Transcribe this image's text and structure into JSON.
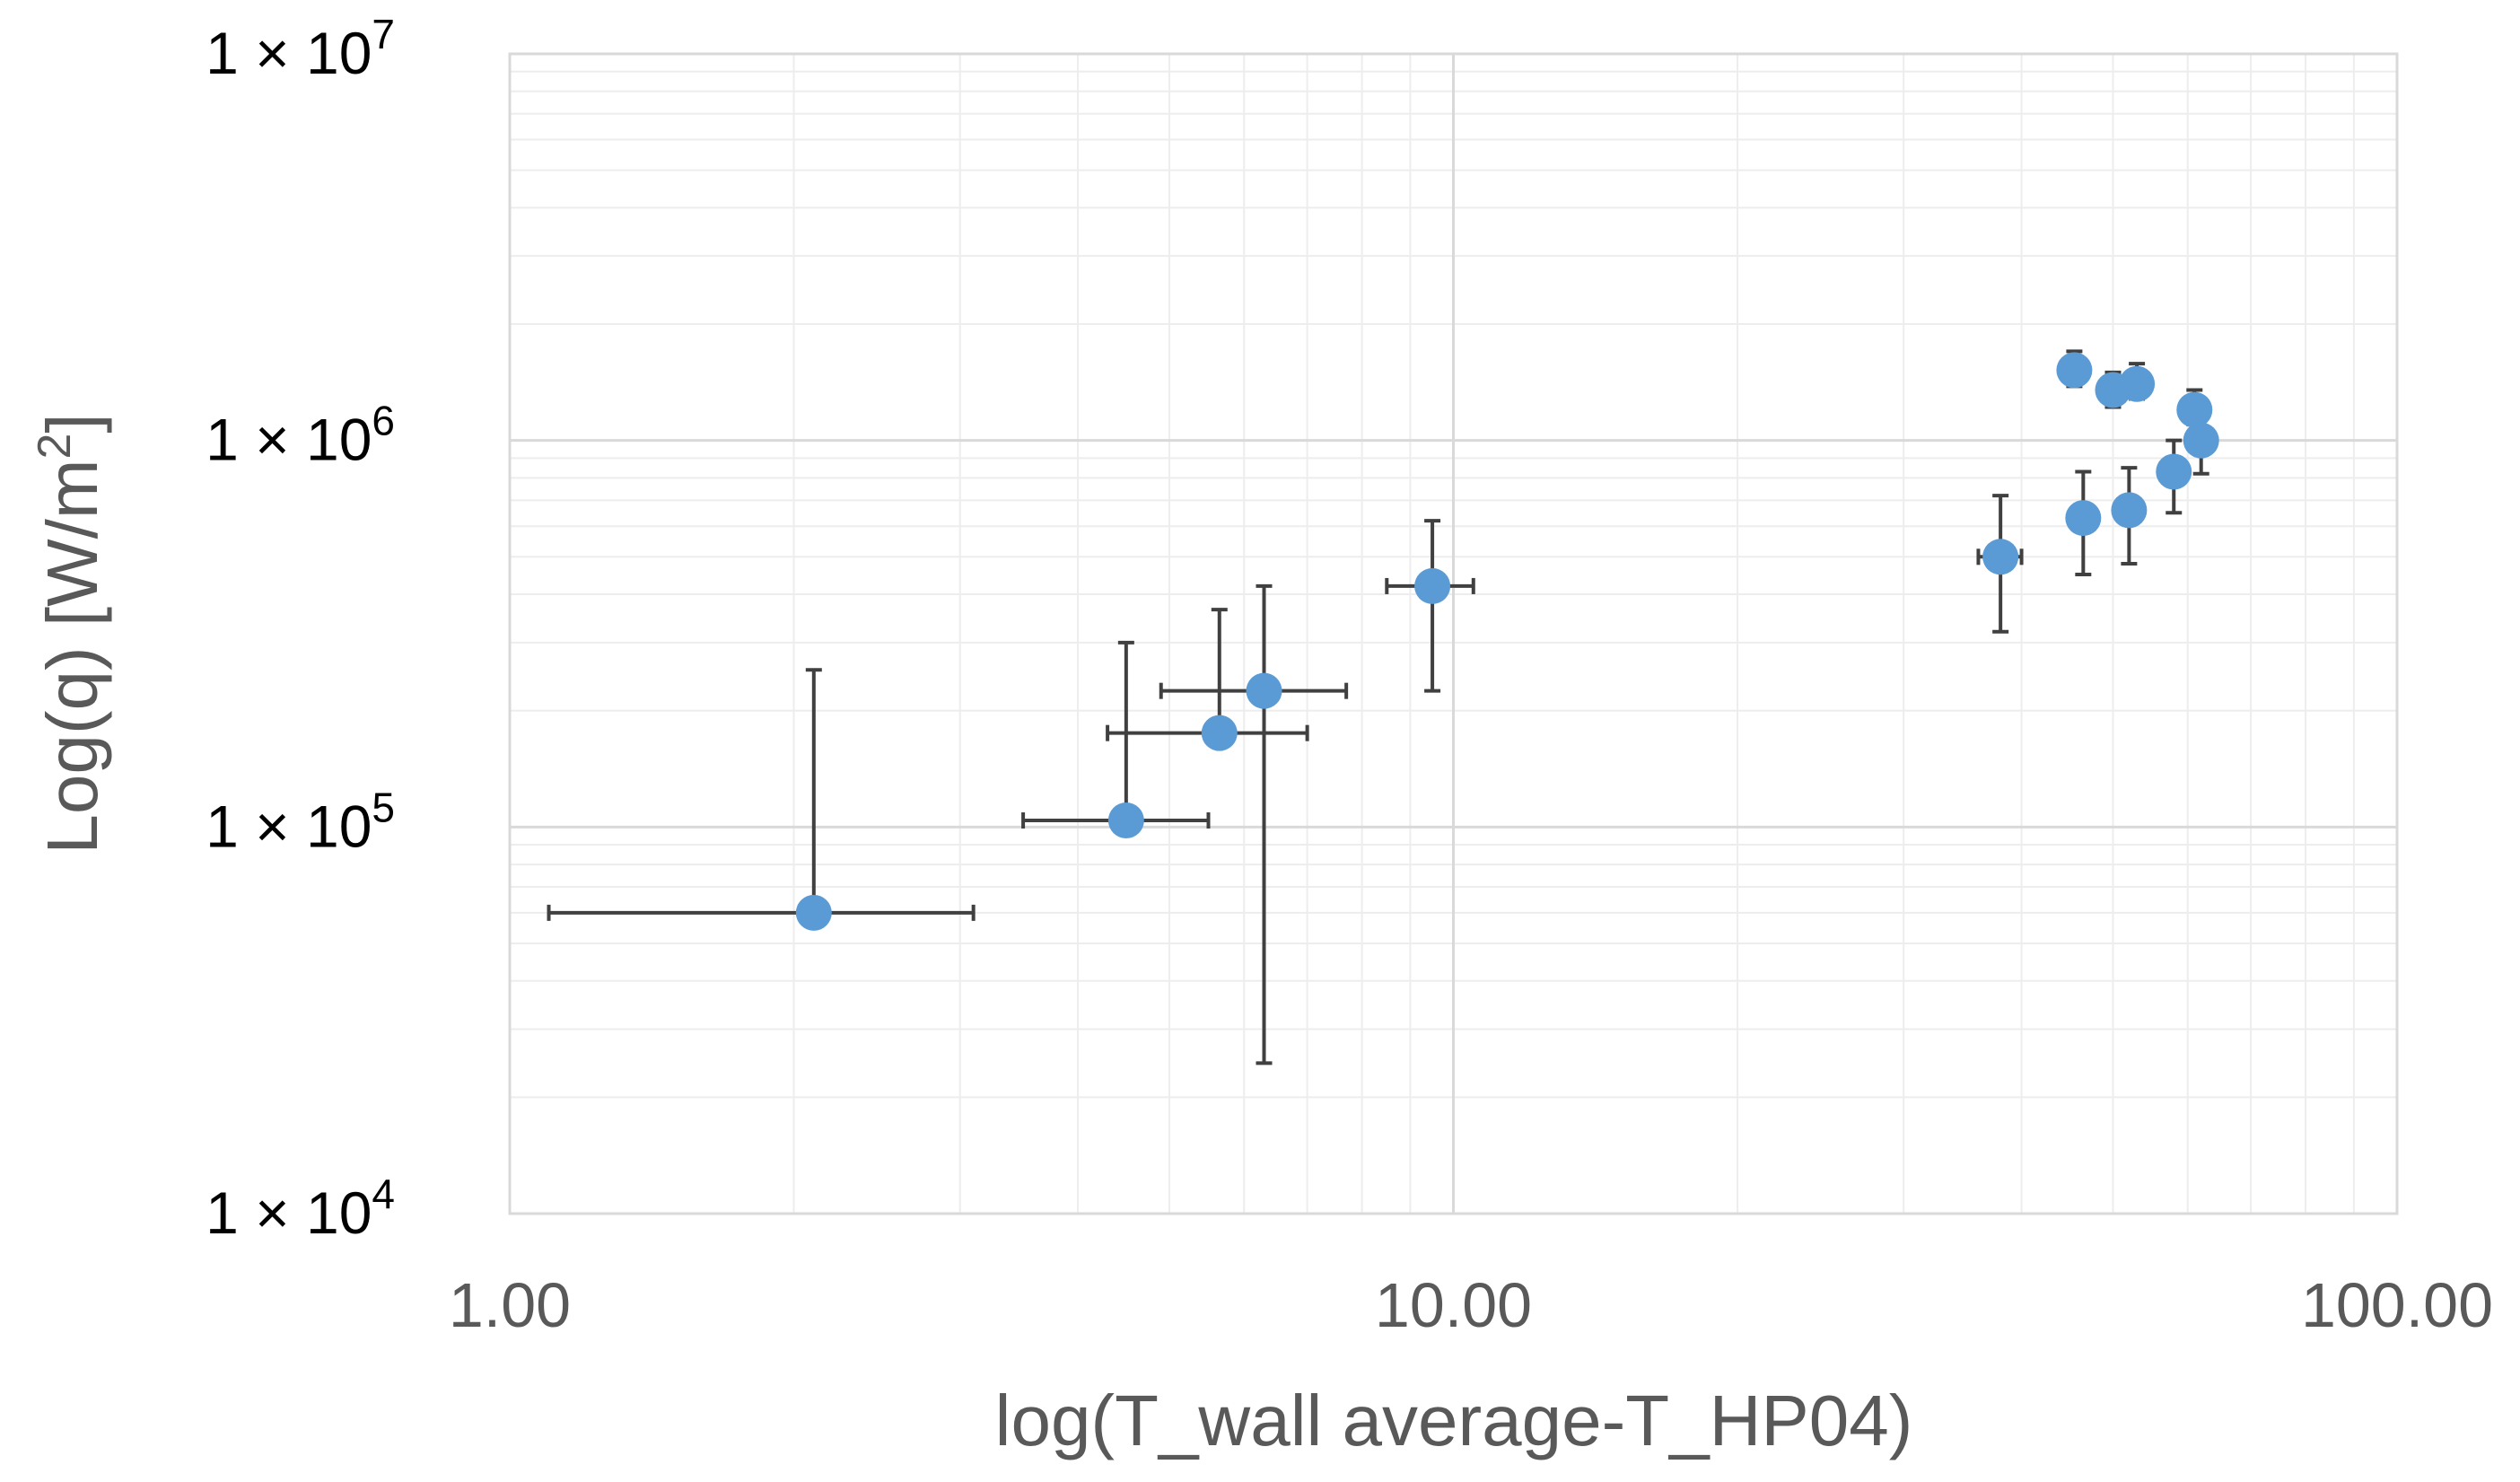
{
  "chart_data": {
    "type": "scatter",
    "title": "",
    "xlabel": "log(T_wall average-T_HP04)",
    "ylabel": {
      "prefix": "Log(q) [W/m",
      "sup": "2",
      "suffix": "]"
    },
    "xscale": "log",
    "yscale": "log",
    "xlim": [
      1,
      100
    ],
    "ylim": [
      10000,
      10000000
    ],
    "grid": true,
    "legend": "none",
    "x_ticks": [
      {
        "value": 1,
        "label": "1.00"
      },
      {
        "value": 10,
        "label": "10.00"
      },
      {
        "value": 100,
        "label": "100.00"
      }
    ],
    "y_ticks": [
      {
        "value": 10000,
        "mantissa": "1 × 10",
        "exp": "4"
      },
      {
        "value": 100000,
        "mantissa": "1 × 10",
        "exp": "5"
      },
      {
        "value": 1000000,
        "mantissa": "1 × 10",
        "exp": "6"
      },
      {
        "value": 10000000,
        "mantissa": "1 × 10",
        "exp": "7"
      }
    ],
    "marker_color": "#5B9BD5",
    "errorbar_color": "#404040",
    "points": [
      {
        "x": 2.1,
        "y": 60000,
        "xerr": [
          1.1,
          3.1
        ],
        "yerr": [
          null,
          255000
        ]
      },
      {
        "x": 4.5,
        "y": 104000,
        "xerr": [
          3.5,
          5.5
        ],
        "yerr": [
          null,
          300000
        ]
      },
      {
        "x": 5.65,
        "y": 175000,
        "xerr": [
          4.3,
          7.0
        ],
        "yerr": [
          null,
          365000
        ]
      },
      {
        "x": 6.3,
        "y": 225000,
        "xerr": [
          4.9,
          7.7
        ],
        "yerr": [
          24500,
          420000
        ]
      },
      {
        "x": 9.5,
        "y": 420000,
        "xerr": [
          8.5,
          10.5
        ],
        "yerr": [
          225000,
          620000
        ]
      },
      {
        "x": 38,
        "y": 500000,
        "xerr": [
          36,
          40
        ],
        "yerr": [
          320000,
          720000
        ]
      },
      {
        "x": 46.5,
        "y": 630000,
        "xerr": null,
        "yerr": [
          450000,
          830000
        ]
      },
      {
        "x": 52,
        "y": 660000,
        "xerr": null,
        "yerr": [
          480000,
          850000
        ]
      },
      {
        "x": 58,
        "y": 830000,
        "xerr": null,
        "yerr": [
          650000,
          1000000
        ]
      },
      {
        "x": 62,
        "y": 1000000,
        "xerr": null,
        "yerr": [
          820000,
          1200000
        ]
      },
      {
        "x": 61,
        "y": 1200000,
        "xerr": null,
        "yerr": [
          1100000,
          1350000
        ]
      },
      {
        "x": 45.5,
        "y": 1520000,
        "xerr": null,
        "yerr": [
          1380000,
          1700000
        ]
      },
      {
        "x": 50,
        "y": 1350000,
        "xerr": null,
        "yerr": [
          1220000,
          1500000
        ]
      },
      {
        "x": 53,
        "y": 1400000,
        "xerr": null,
        "yerr": [
          1280000,
          1580000
        ]
      }
    ]
  }
}
